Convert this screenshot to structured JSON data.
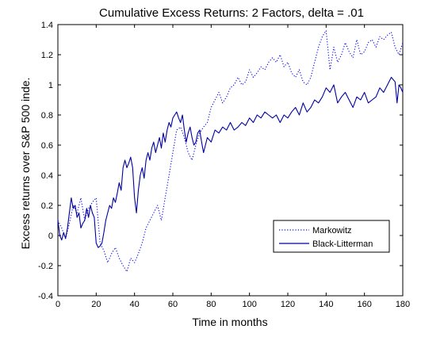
{
  "chart_data": {
    "type": "line",
    "title": "Cumulative Excess Returns: 2 Factors, delta = .01",
    "xlabel": "Time in months",
    "ylabel": "Excess returns over S&P 500 inde.",
    "xlim": [
      0,
      180
    ],
    "ylim": [
      -0.4,
      1.4
    ],
    "x_ticks": [
      "0",
      "20",
      "40",
      "60",
      "80",
      "100",
      "120",
      "140",
      "160",
      "180"
    ],
    "y_ticks": [
      "-0.4",
      "-0.2",
      "0",
      "0.2",
      "0.4",
      "0.6",
      "0.8",
      "1",
      "1.2",
      "1.4"
    ],
    "grid": false,
    "legend_position": "lower-right",
    "series": [
      {
        "name": "Markowitz",
        "color": "#0000ff",
        "line_style": "dotted",
        "x": [
          0,
          2,
          4,
          6,
          8,
          10,
          12,
          14,
          16,
          18,
          20,
          22,
          24,
          26,
          28,
          30,
          32,
          34,
          36,
          38,
          40,
          42,
          44,
          46,
          48,
          50,
          52,
          54,
          56,
          58,
          60,
          62,
          64,
          66,
          68,
          70,
          72,
          74,
          76,
          78,
          80,
          82,
          84,
          86,
          88,
          90,
          92,
          94,
          96,
          98,
          100,
          102,
          104,
          106,
          108,
          110,
          112,
          114,
          116,
          118,
          120,
          122,
          124,
          126,
          128,
          130,
          132,
          134,
          136,
          138,
          140,
          142,
          144,
          146,
          148,
          150,
          152,
          154,
          156,
          158,
          160,
          162,
          164,
          166,
          168,
          170,
          172,
          174,
          176,
          178,
          180
        ],
        "y": [
          0.1,
          0.05,
          -0.02,
          0.08,
          0.2,
          0.15,
          0.25,
          0.1,
          0.18,
          0.22,
          0.25,
          -0.05,
          -0.1,
          -0.18,
          -0.12,
          -0.08,
          -0.15,
          -0.2,
          -0.24,
          -0.15,
          -0.18,
          -0.12,
          -0.05,
          0.05,
          0.1,
          0.15,
          0.2,
          0.1,
          0.25,
          0.4,
          0.55,
          0.7,
          0.72,
          0.65,
          0.55,
          0.5,
          0.6,
          0.68,
          0.72,
          0.75,
          0.85,
          0.9,
          0.95,
          0.88,
          0.92,
          0.98,
          1.0,
          1.05,
          1.0,
          1.02,
          1.1,
          1.05,
          1.08,
          1.12,
          1.1,
          1.15,
          1.18,
          1.15,
          1.2,
          1.12,
          1.15,
          1.08,
          1.05,
          1.1,
          1.02,
          1.0,
          1.05,
          1.15,
          1.25,
          1.32,
          1.36,
          1.1,
          1.25,
          1.15,
          1.2,
          1.28,
          1.22,
          1.18,
          1.3,
          1.2,
          1.22,
          1.28,
          1.3,
          1.25,
          1.32,
          1.3,
          1.33,
          1.35,
          1.25,
          1.2,
          1.28
        ]
      },
      {
        "name": "Black-Litterman",
        "color": "#0000a0",
        "line_style": "solid",
        "x": [
          0,
          1,
          2,
          3,
          4,
          5,
          6,
          7,
          8,
          9,
          10,
          11,
          12,
          13,
          14,
          15,
          16,
          17,
          18,
          19,
          20,
          21,
          22,
          23,
          24,
          25,
          26,
          27,
          28,
          29,
          30,
          31,
          32,
          33,
          34,
          35,
          36,
          37,
          38,
          39,
          40,
          41,
          42,
          43,
          44,
          45,
          46,
          47,
          48,
          49,
          50,
          51,
          52,
          53,
          54,
          55,
          56,
          57,
          58,
          59,
          60,
          61,
          62,
          63,
          64,
          65,
          66,
          67,
          68,
          69,
          70,
          71,
          72,
          73,
          74,
          75,
          76,
          78,
          80,
          82,
          84,
          86,
          88,
          90,
          92,
          94,
          96,
          98,
          100,
          102,
          104,
          106,
          108,
          110,
          112,
          114,
          116,
          118,
          120,
          122,
          124,
          126,
          128,
          130,
          132,
          134,
          136,
          138,
          140,
          142,
          144,
          146,
          148,
          150,
          152,
          154,
          156,
          158,
          160,
          162,
          164,
          166,
          168,
          170,
          172,
          174,
          176,
          177,
          178,
          179,
          180
        ],
        "y": [
          0.1,
          0.0,
          -0.03,
          0.02,
          -0.02,
          0.05,
          0.15,
          0.25,
          0.18,
          0.2,
          0.12,
          0.15,
          0.05,
          0.08,
          0.1,
          0.18,
          0.12,
          0.2,
          0.15,
          0.12,
          -0.05,
          -0.08,
          -0.07,
          -0.05,
          0.02,
          0.1,
          0.15,
          0.2,
          0.18,
          0.25,
          0.22,
          0.28,
          0.35,
          0.3,
          0.45,
          0.5,
          0.45,
          0.48,
          0.52,
          0.45,
          0.25,
          0.15,
          0.3,
          0.4,
          0.45,
          0.38,
          0.5,
          0.55,
          0.5,
          0.58,
          0.62,
          0.55,
          0.6,
          0.65,
          0.58,
          0.68,
          0.62,
          0.7,
          0.75,
          0.72,
          0.78,
          0.8,
          0.82,
          0.78,
          0.75,
          0.8,
          0.7,
          0.62,
          0.68,
          0.72,
          0.65,
          0.6,
          0.62,
          0.68,
          0.7,
          0.62,
          0.55,
          0.65,
          0.62,
          0.7,
          0.68,
          0.72,
          0.7,
          0.75,
          0.7,
          0.72,
          0.75,
          0.73,
          0.78,
          0.75,
          0.8,
          0.78,
          0.82,
          0.8,
          0.78,
          0.8,
          0.75,
          0.8,
          0.78,
          0.82,
          0.85,
          0.8,
          0.88,
          0.82,
          0.85,
          0.9,
          0.88,
          0.92,
          0.98,
          0.95,
          1.0,
          0.88,
          0.92,
          0.95,
          0.9,
          0.85,
          0.92,
          0.9,
          0.95,
          0.88,
          0.9,
          0.92,
          0.98,
          0.95,
          1.0,
          1.05,
          1.02,
          0.88,
          1.0,
          0.98,
          0.95
        ]
      }
    ]
  }
}
